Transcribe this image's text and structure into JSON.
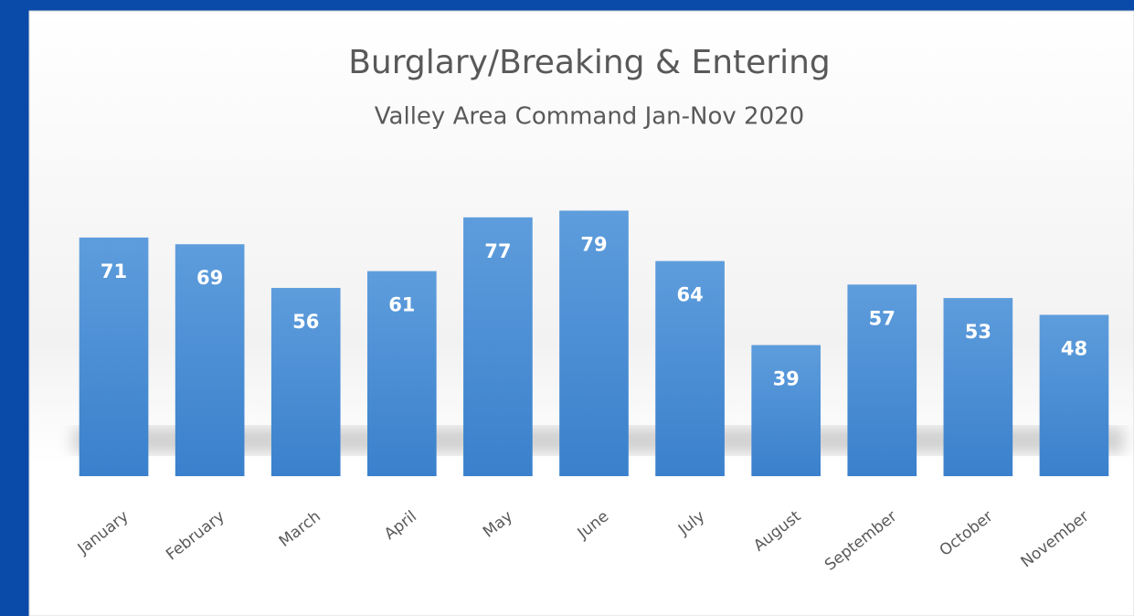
{
  "chart_data": {
    "type": "bar",
    "title": "Burglary/Breaking & Entering",
    "subtitle": "Valley Area Command Jan-Nov 2020",
    "categories": [
      "January",
      "February",
      "March",
      "April",
      "May",
      "June",
      "July",
      "August",
      "September",
      "October",
      "November"
    ],
    "values": [
      71,
      69,
      56,
      61,
      77,
      79,
      64,
      39,
      57,
      53,
      48
    ],
    "color": "#4a8fd6",
    "ylim": [
      0,
      90
    ]
  }
}
